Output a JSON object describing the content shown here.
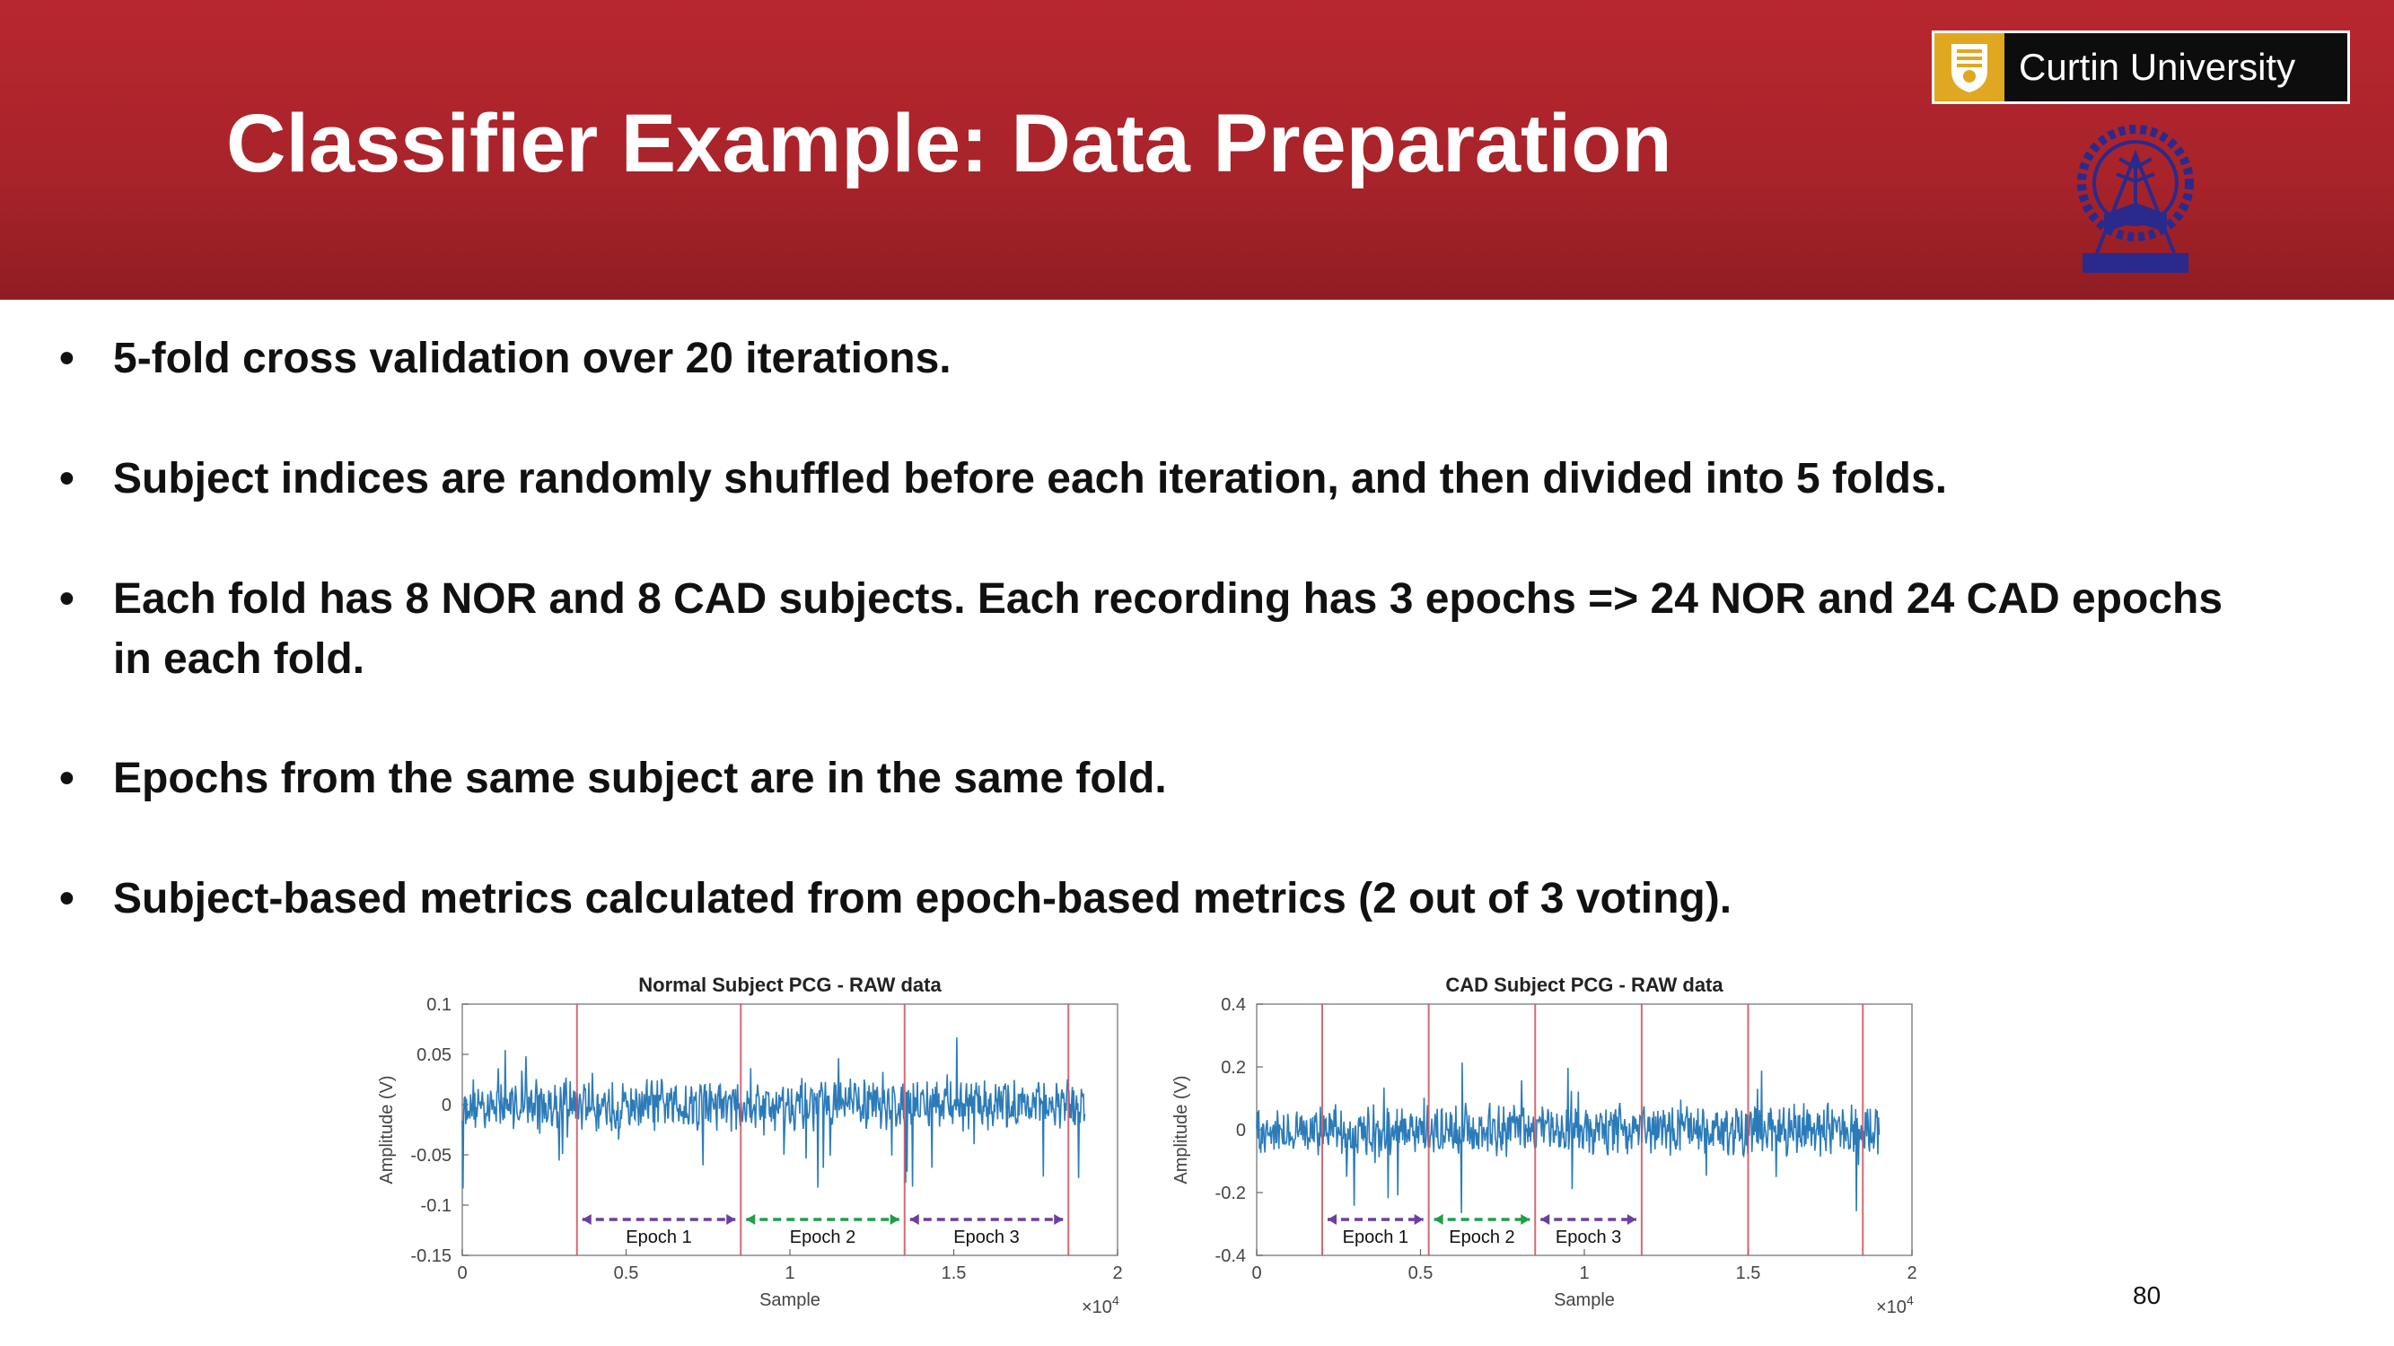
{
  "header": {
    "title": "Classifier Example: Data Preparation",
    "logo_text": "Curtin University",
    "accent_color": "#b8272f"
  },
  "bullets": [
    {
      "text": "5-fold cross validation over 20 iterations."
    },
    {
      "text": "Subject indices are randomly shuffled before each iteration, and then divided into 5 folds."
    },
    {
      "text": "Each fold has 8 NOR and 8 CAD subjects. Each recording has 3 epochs => 24 NOR and 24 CAD epochs",
      "continuation": "in each fold."
    },
    {
      "text": "Epochs from the same subject are in the same fold."
    },
    {
      "text": "Subject-based metrics calculated from epoch-based metrics (2 out of 3 voting)."
    }
  ],
  "bullet_symbol": "•",
  "page_number": "80",
  "chart_data": [
    {
      "type": "line",
      "title": "Normal Subject PCG - RAW data",
      "xlabel": "Sample",
      "ylabel": "Amplitude (V)",
      "x_multiplier": "×10",
      "x_exponent": "4",
      "xlim": [
        0,
        2
      ],
      "ylim": [
        -0.15,
        0.1
      ],
      "xticks": [
        0,
        0.5,
        1,
        1.5,
        2
      ],
      "xtick_labels": [
        "0",
        "0.5",
        "1",
        "1.5",
        "2"
      ],
      "yticks": [
        0.1,
        0.05,
        0,
        -0.05,
        -0.1,
        -0.15
      ],
      "ytick_labels": [
        "0.1",
        "0.05",
        "0",
        "-0.05",
        "-0.1",
        "-0.15"
      ],
      "signal_end": 1.9,
      "signal_color": "#2b7bb9",
      "epoch_boundaries": [
        0.35,
        0.85,
        1.35,
        1.85
      ],
      "epochs": [
        {
          "label": "Epoch 1",
          "start": 0.35,
          "end": 0.85,
          "color": "#6b3fa0"
        },
        {
          "label": "Epoch 2",
          "start": 0.85,
          "end": 1.35,
          "color": "#1e9e4a"
        },
        {
          "label": "Epoch 3",
          "start": 1.35,
          "end": 1.85,
          "color": "#6b3fa0"
        }
      ]
    },
    {
      "type": "line",
      "title": "CAD Subject PCG - RAW data",
      "xlabel": "Sample",
      "ylabel": "Amplitude (V)",
      "x_multiplier": "×10",
      "x_exponent": "4",
      "xlim": [
        0,
        2
      ],
      "ylim": [
        -0.4,
        0.4
      ],
      "xticks": [
        0,
        0.5,
        1,
        1.5,
        2
      ],
      "xtick_labels": [
        "0",
        "0.5",
        "1",
        "1.5",
        "2"
      ],
      "yticks": [
        0.4,
        0.2,
        0,
        -0.2,
        -0.4
      ],
      "ytick_labels": [
        "0.4",
        "0.2",
        "0",
        "-0.2",
        "-0.4"
      ],
      "signal_end": 1.9,
      "signal_color": "#2b7bb9",
      "epoch_boundaries": [
        0.2,
        0.525,
        0.85,
        1.175,
        1.5,
        1.85
      ],
      "epochs": [
        {
          "label": "Epoch 1",
          "start": 0.2,
          "end": 0.525,
          "color": "#6b3fa0"
        },
        {
          "label": "Epoch 2",
          "start": 0.525,
          "end": 0.85,
          "color": "#1e9e4a"
        },
        {
          "label": "Epoch 3",
          "start": 0.85,
          "end": 1.175,
          "color": "#6b3fa0"
        }
      ]
    }
  ]
}
